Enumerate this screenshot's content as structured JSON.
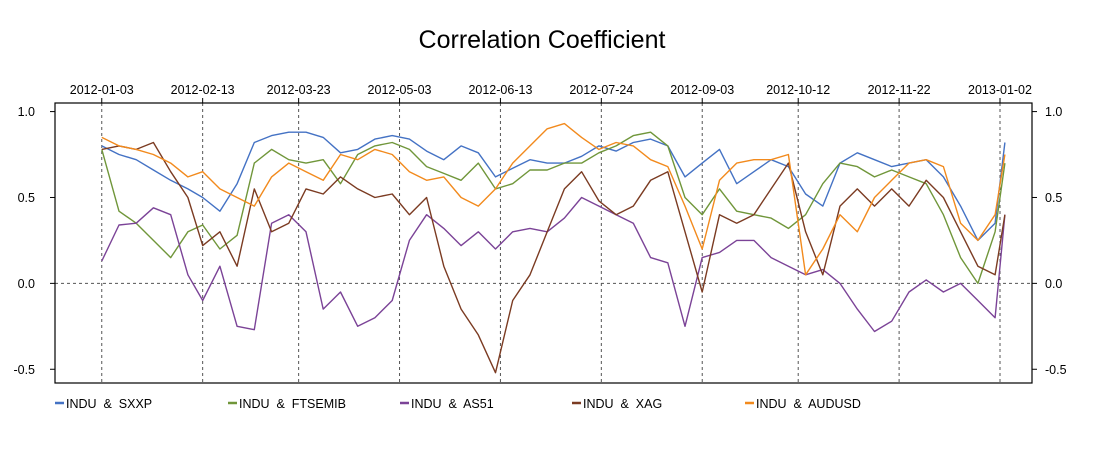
{
  "chart_data": {
    "type": "line",
    "title": "Correlation Coefficient",
    "xlabel": "",
    "ylabel": "",
    "x_tick_labels": [
      "2012-01-03",
      "2012-02-13",
      "2012-03-23",
      "2012-05-03",
      "2012-06-13",
      "2012-07-24",
      "2012-09-03",
      "2012-10-12",
      "2012-11-22",
      "2013-01-02"
    ],
    "y_ticks": [
      1.0,
      0.5,
      0.0,
      -0.5
    ],
    "y_tick_labels": [
      "1.0",
      "0.5",
      "0.0",
      "-0.5"
    ],
    "ylim": [
      -0.58,
      1.05
    ],
    "x_range": [
      "2011-12-15",
      "2013-01-15"
    ],
    "grid": "dashed vertical lines at x ticks; dashed horizontal line at 0.0",
    "legend_position": "bottom",
    "series": [
      {
        "name": "INDU  &  SXXP",
        "color": "#4472C4",
        "points": [
          [
            "2012-01-03",
            0.8
          ],
          [
            "2012-01-10",
            0.75
          ],
          [
            "2012-01-17",
            0.72
          ],
          [
            "2012-01-24",
            0.66
          ],
          [
            "2012-01-31",
            0.6
          ],
          [
            "2012-02-07",
            0.55
          ],
          [
            "2012-02-13",
            0.5
          ],
          [
            "2012-02-20",
            0.42
          ],
          [
            "2012-02-27",
            0.58
          ],
          [
            "2012-03-05",
            0.82
          ],
          [
            "2012-03-12",
            0.86
          ],
          [
            "2012-03-19",
            0.88
          ],
          [
            "2012-03-26",
            0.88
          ],
          [
            "2012-04-02",
            0.85
          ],
          [
            "2012-04-09",
            0.76
          ],
          [
            "2012-04-16",
            0.78
          ],
          [
            "2012-04-23",
            0.84
          ],
          [
            "2012-04-30",
            0.86
          ],
          [
            "2012-05-07",
            0.84
          ],
          [
            "2012-05-14",
            0.77
          ],
          [
            "2012-05-21",
            0.72
          ],
          [
            "2012-05-28",
            0.8
          ],
          [
            "2012-06-04",
            0.76
          ],
          [
            "2012-06-11",
            0.62
          ],
          [
            "2012-06-18",
            0.67
          ],
          [
            "2012-06-25",
            0.72
          ],
          [
            "2012-07-02",
            0.7
          ],
          [
            "2012-07-09",
            0.7
          ],
          [
            "2012-07-16",
            0.74
          ],
          [
            "2012-07-23",
            0.8
          ],
          [
            "2012-07-30",
            0.77
          ],
          [
            "2012-08-06",
            0.82
          ],
          [
            "2012-08-13",
            0.84
          ],
          [
            "2012-08-20",
            0.8
          ],
          [
            "2012-08-27",
            0.62
          ],
          [
            "2012-09-03",
            0.7
          ],
          [
            "2012-09-10",
            0.78
          ],
          [
            "2012-09-17",
            0.58
          ],
          [
            "2012-09-24",
            0.65
          ],
          [
            "2012-10-01",
            0.72
          ],
          [
            "2012-10-08",
            0.68
          ],
          [
            "2012-10-15",
            0.52
          ],
          [
            "2012-10-22",
            0.45
          ],
          [
            "2012-10-29",
            0.7
          ],
          [
            "2012-11-05",
            0.76
          ],
          [
            "2012-11-12",
            0.72
          ],
          [
            "2012-11-19",
            0.68
          ],
          [
            "2012-11-26",
            0.7
          ],
          [
            "2012-12-03",
            0.72
          ],
          [
            "2012-12-10",
            0.62
          ],
          [
            "2012-12-17",
            0.45
          ],
          [
            "2012-12-24",
            0.25
          ],
          [
            "2012-12-31",
            0.35
          ],
          [
            "2013-01-04",
            0.82
          ]
        ]
      },
      {
        "name": "INDU  &  FTSEMIB",
        "color": "#70963A",
        "points": [
          [
            "2012-01-03",
            0.78
          ],
          [
            "2012-01-10",
            0.42
          ],
          [
            "2012-01-17",
            0.35
          ],
          [
            "2012-01-24",
            0.25
          ],
          [
            "2012-01-31",
            0.15
          ],
          [
            "2012-02-07",
            0.3
          ],
          [
            "2012-02-13",
            0.34
          ],
          [
            "2012-02-20",
            0.2
          ],
          [
            "2012-02-27",
            0.28
          ],
          [
            "2012-03-05",
            0.7
          ],
          [
            "2012-03-12",
            0.78
          ],
          [
            "2012-03-19",
            0.72
          ],
          [
            "2012-03-26",
            0.7
          ],
          [
            "2012-04-02",
            0.72
          ],
          [
            "2012-04-09",
            0.58
          ],
          [
            "2012-04-16",
            0.75
          ],
          [
            "2012-04-23",
            0.8
          ],
          [
            "2012-04-30",
            0.82
          ],
          [
            "2012-05-07",
            0.78
          ],
          [
            "2012-05-14",
            0.68
          ],
          [
            "2012-05-21",
            0.64
          ],
          [
            "2012-05-28",
            0.6
          ],
          [
            "2012-06-04",
            0.7
          ],
          [
            "2012-06-11",
            0.55
          ],
          [
            "2012-06-18",
            0.58
          ],
          [
            "2012-06-25",
            0.66
          ],
          [
            "2012-07-02",
            0.66
          ],
          [
            "2012-07-09",
            0.7
          ],
          [
            "2012-07-16",
            0.7
          ],
          [
            "2012-07-23",
            0.76
          ],
          [
            "2012-07-30",
            0.8
          ],
          [
            "2012-08-06",
            0.86
          ],
          [
            "2012-08-13",
            0.88
          ],
          [
            "2012-08-20",
            0.8
          ],
          [
            "2012-08-27",
            0.5
          ],
          [
            "2012-09-03",
            0.4
          ],
          [
            "2012-09-10",
            0.55
          ],
          [
            "2012-09-17",
            0.42
          ],
          [
            "2012-09-24",
            0.4
          ],
          [
            "2012-10-01",
            0.38
          ],
          [
            "2012-10-08",
            0.32
          ],
          [
            "2012-10-15",
            0.4
          ],
          [
            "2012-10-22",
            0.58
          ],
          [
            "2012-10-29",
            0.7
          ],
          [
            "2012-11-05",
            0.68
          ],
          [
            "2012-11-12",
            0.62
          ],
          [
            "2012-11-19",
            0.66
          ],
          [
            "2012-11-26",
            0.62
          ],
          [
            "2012-12-03",
            0.58
          ],
          [
            "2012-12-10",
            0.4
          ],
          [
            "2012-12-17",
            0.15
          ],
          [
            "2012-12-24",
            0.0
          ],
          [
            "2012-12-31",
            0.3
          ],
          [
            "2013-01-04",
            0.7
          ]
        ]
      },
      {
        "name": "INDU  &  AS51",
        "color": "#7B4397",
        "points": [
          [
            "2012-01-03",
            0.13
          ],
          [
            "2012-01-10",
            0.34
          ],
          [
            "2012-01-17",
            0.35
          ],
          [
            "2012-01-24",
            0.44
          ],
          [
            "2012-01-31",
            0.4
          ],
          [
            "2012-02-07",
            0.05
          ],
          [
            "2012-02-13",
            -0.1
          ],
          [
            "2012-02-20",
            0.1
          ],
          [
            "2012-02-27",
            -0.25
          ],
          [
            "2012-03-05",
            -0.27
          ],
          [
            "2012-03-12",
            0.35
          ],
          [
            "2012-03-19",
            0.4
          ],
          [
            "2012-03-26",
            0.3
          ],
          [
            "2012-04-02",
            -0.15
          ],
          [
            "2012-04-09",
            -0.05
          ],
          [
            "2012-04-16",
            -0.25
          ],
          [
            "2012-04-23",
            -0.2
          ],
          [
            "2012-04-30",
            -0.1
          ],
          [
            "2012-05-07",
            0.25
          ],
          [
            "2012-05-14",
            0.4
          ],
          [
            "2012-05-21",
            0.32
          ],
          [
            "2012-05-28",
            0.22
          ],
          [
            "2012-06-04",
            0.3
          ],
          [
            "2012-06-11",
            0.2
          ],
          [
            "2012-06-18",
            0.3
          ],
          [
            "2012-06-25",
            0.32
          ],
          [
            "2012-07-02",
            0.3
          ],
          [
            "2012-07-09",
            0.38
          ],
          [
            "2012-07-16",
            0.5
          ],
          [
            "2012-07-23",
            0.45
          ],
          [
            "2012-07-30",
            0.4
          ],
          [
            "2012-08-06",
            0.35
          ],
          [
            "2012-08-13",
            0.15
          ],
          [
            "2012-08-20",
            0.12
          ],
          [
            "2012-08-27",
            -0.25
          ],
          [
            "2012-09-03",
            0.15
          ],
          [
            "2012-09-10",
            0.18
          ],
          [
            "2012-09-17",
            0.25
          ],
          [
            "2012-09-24",
            0.25
          ],
          [
            "2012-10-01",
            0.15
          ],
          [
            "2012-10-08",
            0.1
          ],
          [
            "2012-10-15",
            0.05
          ],
          [
            "2012-10-22",
            0.08
          ],
          [
            "2012-10-29",
            0.0
          ],
          [
            "2012-11-05",
            -0.15
          ],
          [
            "2012-11-12",
            -0.28
          ],
          [
            "2012-11-19",
            -0.22
          ],
          [
            "2012-11-26",
            -0.05
          ],
          [
            "2012-12-03",
            0.02
          ],
          [
            "2012-12-10",
            -0.05
          ],
          [
            "2012-12-17",
            0.0
          ],
          [
            "2012-12-24",
            -0.1
          ],
          [
            "2012-12-31",
            -0.2
          ],
          [
            "2013-01-04",
            0.4
          ]
        ]
      },
      {
        "name": "INDU  &  XAG",
        "color": "#7B3B22",
        "points": [
          [
            "2012-01-03",
            0.78
          ],
          [
            "2012-01-10",
            0.8
          ],
          [
            "2012-01-17",
            0.78
          ],
          [
            "2012-01-24",
            0.82
          ],
          [
            "2012-01-31",
            0.65
          ],
          [
            "2012-02-07",
            0.5
          ],
          [
            "2012-02-13",
            0.22
          ],
          [
            "2012-02-20",
            0.3
          ],
          [
            "2012-02-27",
            0.1
          ],
          [
            "2012-03-05",
            0.55
          ],
          [
            "2012-03-12",
            0.3
          ],
          [
            "2012-03-19",
            0.35
          ],
          [
            "2012-03-26",
            0.55
          ],
          [
            "2012-04-02",
            0.52
          ],
          [
            "2012-04-09",
            0.62
          ],
          [
            "2012-04-16",
            0.55
          ],
          [
            "2012-04-23",
            0.5
          ],
          [
            "2012-04-30",
            0.52
          ],
          [
            "2012-05-07",
            0.4
          ],
          [
            "2012-05-14",
            0.5
          ],
          [
            "2012-05-21",
            0.1
          ],
          [
            "2012-05-28",
            -0.15
          ],
          [
            "2012-06-04",
            -0.3
          ],
          [
            "2012-06-11",
            -0.52
          ],
          [
            "2012-06-18",
            -0.1
          ],
          [
            "2012-06-25",
            0.05
          ],
          [
            "2012-07-02",
            0.3
          ],
          [
            "2012-07-09",
            0.55
          ],
          [
            "2012-07-16",
            0.65
          ],
          [
            "2012-07-23",
            0.48
          ],
          [
            "2012-07-30",
            0.4
          ],
          [
            "2012-08-06",
            0.45
          ],
          [
            "2012-08-13",
            0.6
          ],
          [
            "2012-08-20",
            0.65
          ],
          [
            "2012-08-27",
            0.3
          ],
          [
            "2012-09-03",
            -0.05
          ],
          [
            "2012-09-10",
            0.4
          ],
          [
            "2012-09-17",
            0.35
          ],
          [
            "2012-09-24",
            0.4
          ],
          [
            "2012-10-01",
            0.55
          ],
          [
            "2012-10-08",
            0.7
          ],
          [
            "2012-10-15",
            0.3
          ],
          [
            "2012-10-22",
            0.05
          ],
          [
            "2012-10-29",
            0.45
          ],
          [
            "2012-11-05",
            0.55
          ],
          [
            "2012-11-12",
            0.45
          ],
          [
            "2012-11-19",
            0.55
          ],
          [
            "2012-11-26",
            0.45
          ],
          [
            "2012-12-03",
            0.6
          ],
          [
            "2012-12-10",
            0.5
          ],
          [
            "2012-12-17",
            0.3
          ],
          [
            "2012-12-24",
            0.1
          ],
          [
            "2012-12-31",
            0.05
          ],
          [
            "2013-01-04",
            0.4
          ]
        ]
      },
      {
        "name": "INDU  &  AUDUSD",
        "color": "#F28A1D",
        "points": [
          [
            "2012-01-03",
            0.85
          ],
          [
            "2012-01-10",
            0.8
          ],
          [
            "2012-01-17",
            0.78
          ],
          [
            "2012-01-24",
            0.75
          ],
          [
            "2012-01-31",
            0.7
          ],
          [
            "2012-02-07",
            0.62
          ],
          [
            "2012-02-13",
            0.65
          ],
          [
            "2012-02-20",
            0.55
          ],
          [
            "2012-02-27",
            0.5
          ],
          [
            "2012-03-05",
            0.45
          ],
          [
            "2012-03-12",
            0.62
          ],
          [
            "2012-03-19",
            0.7
          ],
          [
            "2012-03-26",
            0.65
          ],
          [
            "2012-04-02",
            0.6
          ],
          [
            "2012-04-09",
            0.75
          ],
          [
            "2012-04-16",
            0.72
          ],
          [
            "2012-04-23",
            0.78
          ],
          [
            "2012-04-30",
            0.75
          ],
          [
            "2012-05-07",
            0.65
          ],
          [
            "2012-05-14",
            0.6
          ],
          [
            "2012-05-21",
            0.62
          ],
          [
            "2012-05-28",
            0.5
          ],
          [
            "2012-06-04",
            0.45
          ],
          [
            "2012-06-11",
            0.55
          ],
          [
            "2012-06-18",
            0.7
          ],
          [
            "2012-06-25",
            0.8
          ],
          [
            "2012-07-02",
            0.9
          ],
          [
            "2012-07-09",
            0.93
          ],
          [
            "2012-07-16",
            0.85
          ],
          [
            "2012-07-23",
            0.78
          ],
          [
            "2012-07-30",
            0.82
          ],
          [
            "2012-08-06",
            0.8
          ],
          [
            "2012-08-13",
            0.72
          ],
          [
            "2012-08-20",
            0.68
          ],
          [
            "2012-08-27",
            0.45
          ],
          [
            "2012-09-03",
            0.2
          ],
          [
            "2012-09-10",
            0.6
          ],
          [
            "2012-09-17",
            0.7
          ],
          [
            "2012-09-24",
            0.72
          ],
          [
            "2012-10-01",
            0.72
          ],
          [
            "2012-10-08",
            0.75
          ],
          [
            "2012-10-15",
            0.05
          ],
          [
            "2012-10-22",
            0.2
          ],
          [
            "2012-10-29",
            0.4
          ],
          [
            "2012-11-05",
            0.3
          ],
          [
            "2012-11-12",
            0.5
          ],
          [
            "2012-11-19",
            0.6
          ],
          [
            "2012-11-26",
            0.7
          ],
          [
            "2012-12-03",
            0.72
          ],
          [
            "2012-12-10",
            0.68
          ],
          [
            "2012-12-17",
            0.35
          ],
          [
            "2012-12-24",
            0.25
          ],
          [
            "2012-12-31",
            0.4
          ],
          [
            "2013-01-04",
            0.75
          ]
        ]
      }
    ]
  }
}
